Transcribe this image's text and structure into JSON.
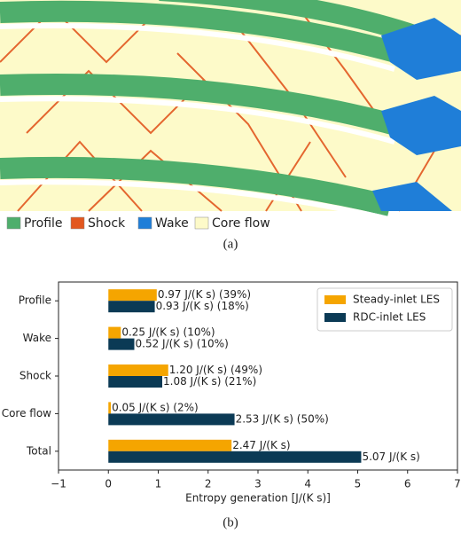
{
  "figure_a": {
    "legend": [
      {
        "label": "Profile",
        "color": "#4fae6c"
      },
      {
        "label": "Shock",
        "color": "#e2571f"
      },
      {
        "label": "Wake",
        "color": "#1f7ed8"
      },
      {
        "label": "Core flow",
        "color": "#fdfac9"
      }
    ],
    "caption": "(a)"
  },
  "chart_data": {
    "type": "barh",
    "categories": [
      "Profile",
      "Wake",
      "Shock",
      "Core flow",
      "Total"
    ],
    "series": [
      {
        "name": "Steady-inlet LES",
        "color": "#f5a500",
        "values": [
          0.97,
          0.25,
          1.2,
          0.05,
          2.47
        ],
        "value_labels": [
          "0.97 J/(K s) (39%)",
          "0.25 J/(K s) (10%)",
          "1.20 J/(K s) (49%)",
          "0.05 J/(K s) (2%)",
          "2.47 J/(K s)"
        ]
      },
      {
        "name": "RDC-inlet LES",
        "color": "#0b3a55",
        "values": [
          0.93,
          0.52,
          1.08,
          2.53,
          5.07
        ],
        "value_labels": [
          "0.93 J/(K s) (18%)",
          "0.52 J/(K s) (10%)",
          "1.08 J/(K s) (21%)",
          "2.53 J/(K s) (50%)",
          "5.07 J/(K s)"
        ]
      }
    ],
    "xlabel": "Entropy generation [J/(K s)]",
    "xlim": [
      -1,
      7
    ],
    "xticks": [
      {
        "value": -1,
        "label": "−1"
      },
      0,
      1,
      2,
      3,
      4,
      5,
      6,
      7
    ],
    "legend": "upper right",
    "caption": "(b)"
  }
}
